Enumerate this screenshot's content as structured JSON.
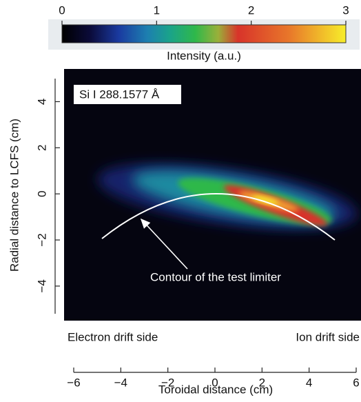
{
  "chart_data": {
    "type": "image",
    "colorbar": {
      "clim": [
        0,
        3
      ],
      "ticks": [
        0,
        1,
        2,
        3
      ],
      "label": "Intensity (a.u.)"
    },
    "annotation": "Si I 288.1577 Å",
    "arrow_label": "Contour of the test limiter",
    "left_side_label": "Electron drift side",
    "right_side_label": "Ion drift side",
    "xlabel": "Toroidal distance (cm)",
    "ylabel": "Radial distance to LCFS (cm)",
    "xlim": [
      -6,
      6
    ],
    "xticks": [
      {
        "value": -6,
        "label": "−6"
      },
      {
        "value": -4,
        "label": "−4"
      },
      {
        "value": -2,
        "label": "−2"
      },
      0,
      2,
      4,
      6
    ],
    "ylim": [
      -5.2,
      5
    ],
    "yticks": [
      {
        "value": -4,
        "label": "−4"
      },
      {
        "value": -2,
        "label": "−2"
      },
      0,
      2,
      4
    ]
  }
}
